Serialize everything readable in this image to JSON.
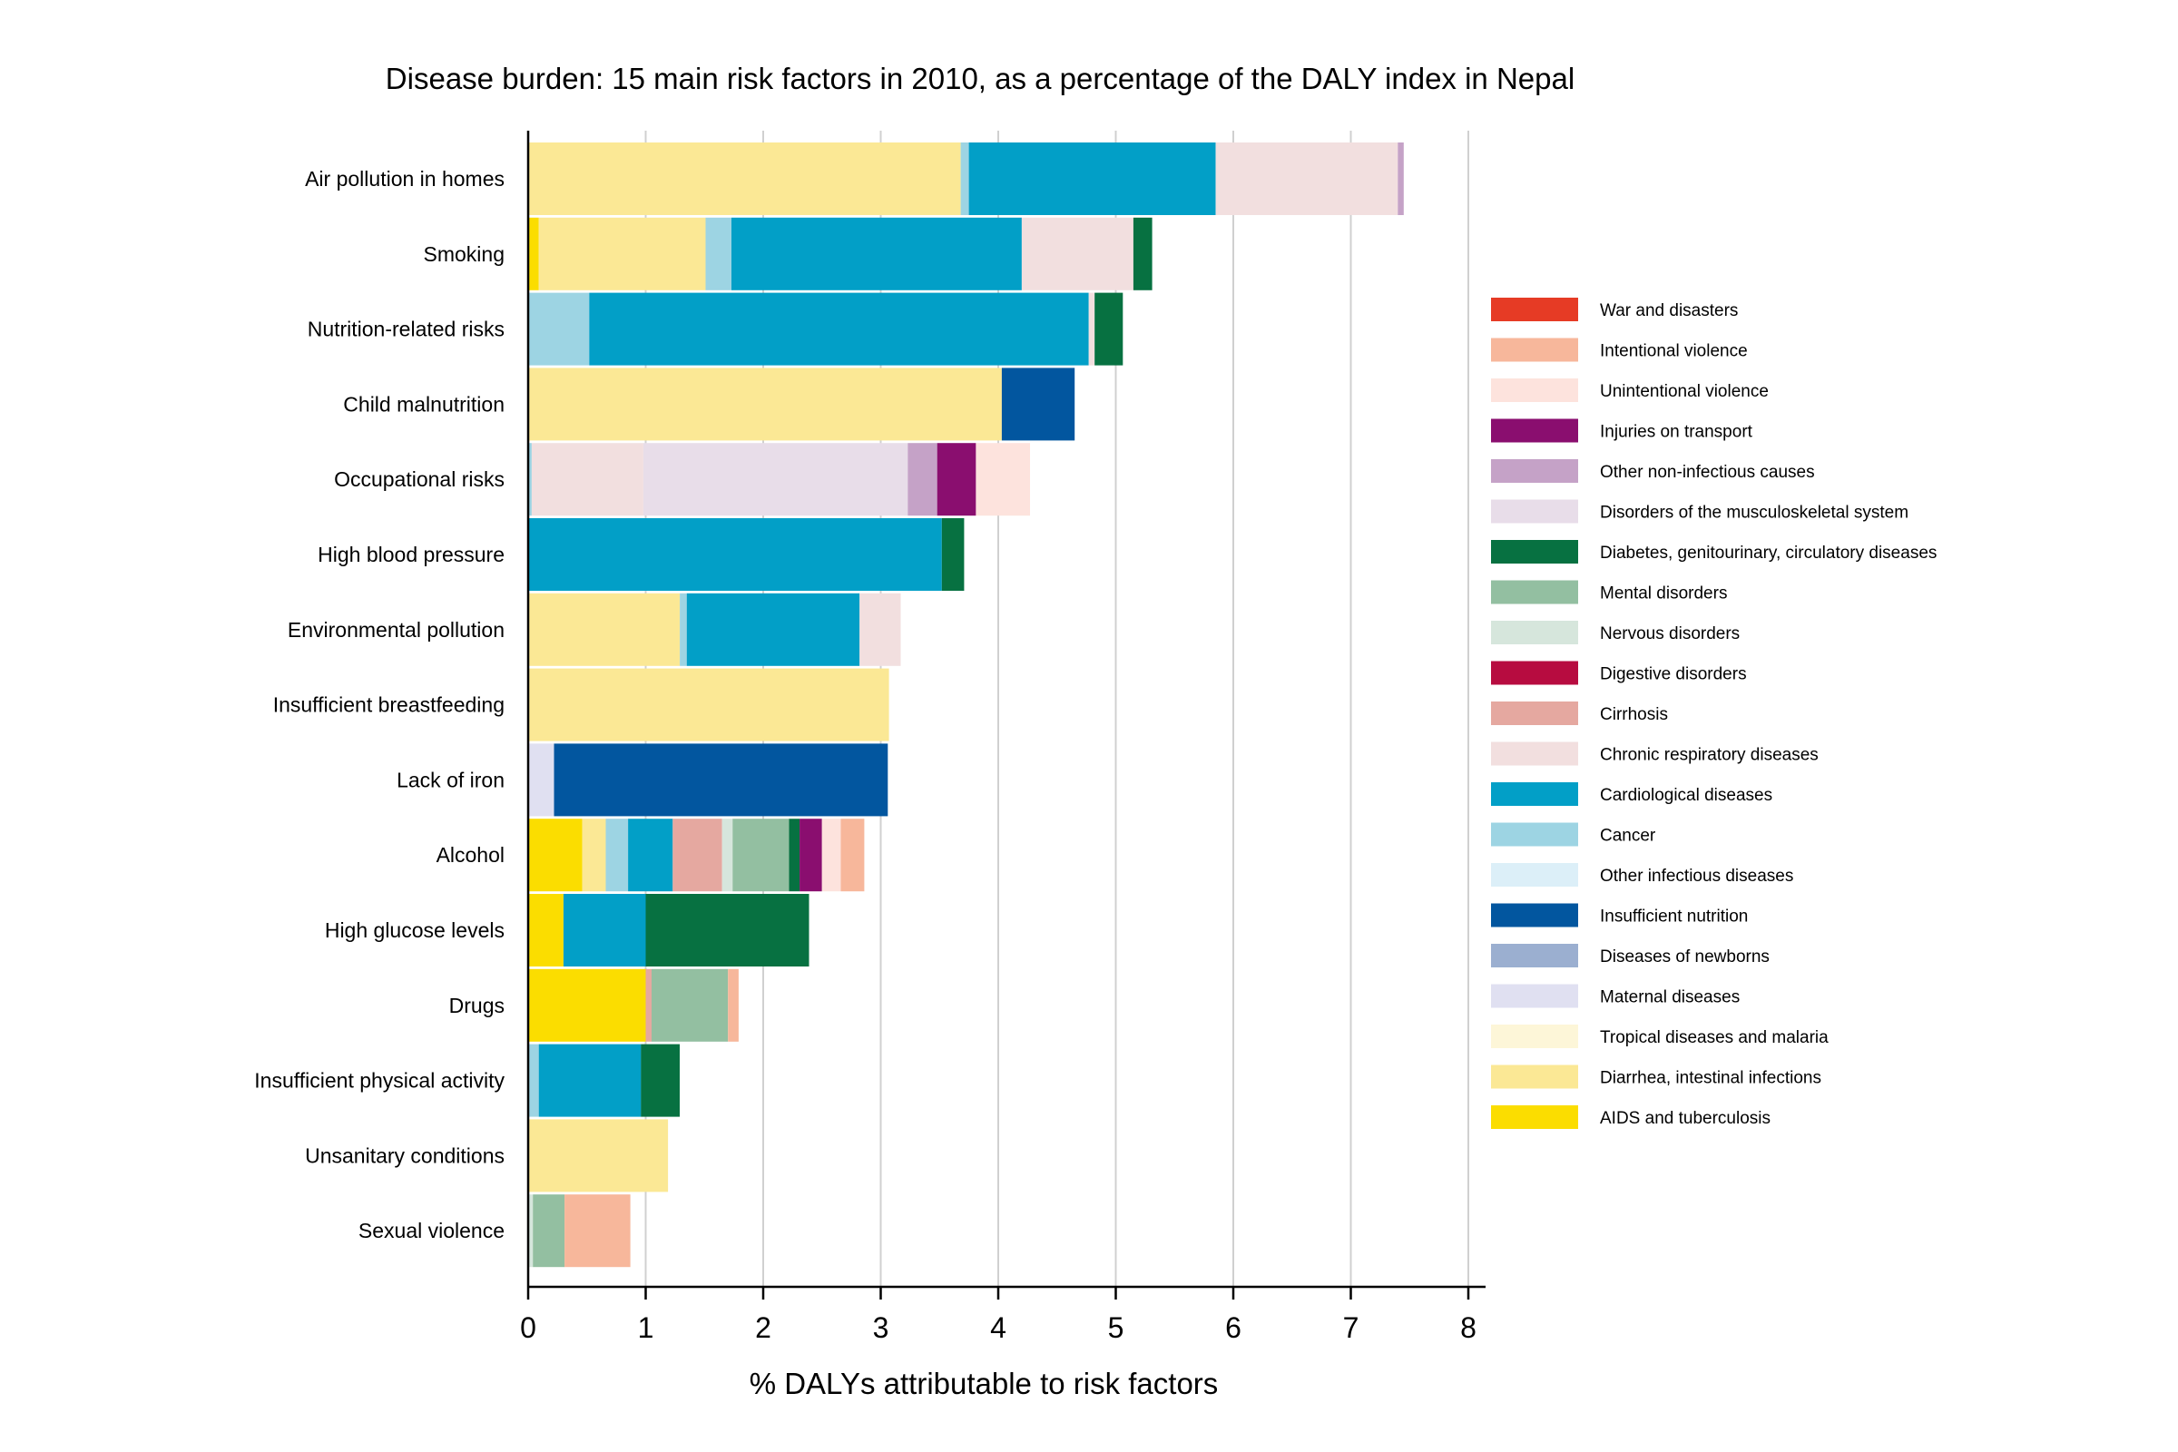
{
  "chart_data": {
    "type": "bar",
    "orientation": "horizontal",
    "stacked": true,
    "title": "Disease burden: 15 main risk factors in 2010, as a percentage of the DALY index in Nepal",
    "xlabel": "% DALYs attributable to risk factors",
    "ylabel": "",
    "xlim": [
      0,
      8.2
    ],
    "xticks": [
      0,
      1,
      2,
      3,
      4,
      5,
      6,
      7,
      8
    ],
    "grid": "vertical",
    "legend_position": "right",
    "categories": [
      "Air pollution in homes",
      "Smoking",
      "Nutrition-related risks",
      "Child malnutrition",
      "Occupational risks",
      "High blood pressure",
      "Environmental pollution",
      "Insufficient breastfeeding",
      "Lack of iron",
      "Alcohol",
      "High glucose levels",
      "Drugs",
      "Insufficient physical activity",
      "Unsanitary conditions",
      "Sexual violence"
    ],
    "series": [
      {
        "name": "War and disasters",
        "color": "#e63b25",
        "values": [
          0,
          0,
          0,
          0,
          0,
          0,
          0,
          0,
          0,
          0,
          0,
          0,
          0,
          0,
          0
        ]
      },
      {
        "name": "Intentional violence",
        "color": "#f7b79b",
        "values": [
          0,
          0,
          0,
          0,
          0,
          0,
          0,
          0,
          0,
          0.2,
          0,
          0.09,
          0,
          0,
          0.56
        ]
      },
      {
        "name": "Unintentional violence",
        "color": "#fde3dd",
        "values": [
          0,
          0,
          0,
          0,
          0.46,
          0,
          0,
          0,
          0,
          0.16,
          0,
          0,
          0,
          0,
          0
        ]
      },
      {
        "name": "Injuries on transport",
        "color": "#8a0e6f",
        "values": [
          0,
          0,
          0,
          0,
          0.33,
          0,
          0,
          0,
          0,
          0.19,
          0,
          0,
          0,
          0,
          0
        ]
      },
      {
        "name": "Other non-infectious causes",
        "color": "#c5a2c7",
        "values": [
          0.05,
          0,
          0,
          0,
          0.25,
          0,
          0,
          0,
          0,
          0,
          0,
          0,
          0,
          0,
          0
        ]
      },
      {
        "name": "Disorders of the musculoskeletal system",
        "color": "#e8dde9",
        "values": [
          0,
          0,
          0,
          0,
          2.25,
          0,
          0,
          0,
          0,
          0,
          0,
          0,
          0,
          0,
          0
        ]
      },
      {
        "name": "Diabetes, genitourinary, circulatory diseases",
        "color": "#077141",
        "values": [
          0,
          0.16,
          0.24,
          0,
          0,
          0.19,
          0,
          0,
          0,
          0.09,
          1.39,
          0,
          0.33,
          0,
          0
        ]
      },
      {
        "name": "Mental disorders",
        "color": "#93bfa1",
        "values": [
          0,
          0,
          0,
          0,
          0,
          0,
          0,
          0,
          0,
          0.48,
          0,
          0.65,
          0,
          0,
          0.27
        ]
      },
      {
        "name": "Nervous disorders",
        "color": "#d6e6dc",
        "values": [
          0,
          0,
          0,
          0,
          0,
          0,
          0,
          0,
          0,
          0.09,
          0,
          0,
          0,
          0,
          0.04
        ]
      },
      {
        "name": "Digestive disorders",
        "color": "#b70c40",
        "values": [
          0,
          0,
          0,
          0,
          0,
          0,
          0,
          0,
          0,
          0,
          0,
          0,
          0,
          0,
          0
        ]
      },
      {
        "name": "Cirrhosis",
        "color": "#e5a8a0",
        "values": [
          0,
          0,
          0,
          0,
          0,
          0,
          0,
          0,
          0,
          0.42,
          0,
          0.05,
          0,
          0,
          0
        ]
      },
      {
        "name": "Chronic respiratory diseases",
        "color": "#f2dfdf",
        "values": [
          1.55,
          0.95,
          0.05,
          0,
          0.95,
          0,
          0.35,
          0,
          0,
          0,
          0,
          0,
          0,
          0,
          0
        ]
      },
      {
        "name": "Cardiological diseases",
        "color": "#029fc7",
        "values": [
          2.1,
          2.47,
          4.25,
          0,
          0,
          3.52,
          1.47,
          0,
          0,
          0.38,
          0.7,
          0,
          0.87,
          0,
          0
        ]
      },
      {
        "name": "Cancer",
        "color": "#9dd4e3",
        "values": [
          0.07,
          0.22,
          0.52,
          0,
          0.03,
          0,
          0.06,
          0,
          0,
          0.19,
          0,
          0,
          0.09,
          0,
          0
        ]
      },
      {
        "name": "Other infectious diseases",
        "color": "#dceff8",
        "values": [
          0,
          0,
          0,
          0,
          0,
          0,
          0,
          0,
          0,
          0,
          0,
          0,
          0,
          0,
          0
        ]
      },
      {
        "name": "Insufficient nutrition",
        "color": "#02569f",
        "values": [
          0,
          0,
          0,
          0.62,
          0,
          0,
          0,
          0,
          2.84,
          0,
          0,
          0,
          0,
          0,
          0
        ]
      },
      {
        "name": "Diseases of newborns",
        "color": "#9bafd0",
        "values": [
          0,
          0,
          0,
          0,
          0,
          0,
          0,
          0,
          0,
          0,
          0,
          0,
          0,
          0,
          0
        ]
      },
      {
        "name": "Maternal diseases",
        "color": "#e0e0f1",
        "values": [
          0,
          0,
          0,
          0,
          0,
          0,
          0,
          0,
          0.22,
          0,
          0,
          0,
          0,
          0,
          0
        ]
      },
      {
        "name": "Tropical diseases and malaria",
        "color": "#fdf6d8",
        "values": [
          0,
          0,
          0,
          0,
          0,
          0,
          0,
          0,
          0,
          0,
          0,
          0,
          0,
          0,
          0
        ]
      },
      {
        "name": "Diarrhea, intestinal infections",
        "color": "#fbe895",
        "values": [
          3.68,
          1.42,
          0,
          4.03,
          0,
          0,
          1.29,
          3.07,
          0,
          0.2,
          0,
          0,
          0,
          1.19,
          0
        ]
      },
      {
        "name": "AIDS and tuberculosis",
        "color": "#fbdd00",
        "values": [
          0,
          0.09,
          0,
          0,
          0,
          0,
          0,
          0,
          0,
          0.46,
          0.3,
          1,
          0,
          0,
          0
        ]
      }
    ],
    "stack_order": [
      "AIDS and tuberculosis",
      "Diarrhea, intestinal infections",
      "Tropical diseases and malaria",
      "Maternal diseases",
      "Diseases of newborns",
      "Insufficient nutrition",
      "Other infectious diseases",
      "Cancer",
      "Cardiological diseases",
      "Chronic respiratory diseases",
      "Cirrhosis",
      "Digestive disorders",
      "Nervous disorders",
      "Mental disorders",
      "Diabetes, genitourinary, circulatory diseases",
      "Disorders of the musculoskeletal system",
      "Other non-infectious causes",
      "Injuries on transport",
      "Unintentional violence",
      "Intentional violence",
      "War and disasters"
    ]
  }
}
